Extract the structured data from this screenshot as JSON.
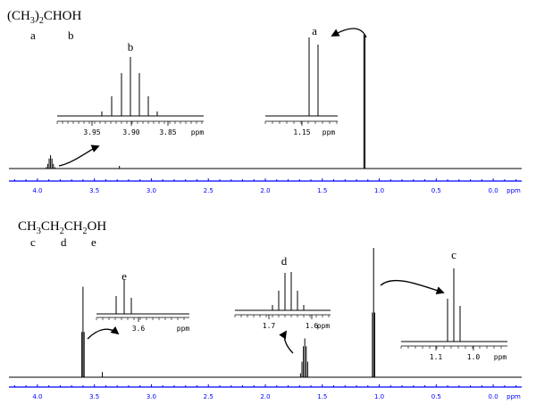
{
  "colors": {
    "spectrum": "#000000",
    "axis": "#0000ff",
    "text": "#000000"
  },
  "spectra": [
    {
      "formula": [
        {
          "t": "(CH",
          "sub": false
        },
        {
          "t": "3",
          "sub": true
        },
        {
          "t": ")",
          "sub": false
        },
        {
          "t": "2",
          "sub": true
        },
        {
          "t": "CHOH",
          "sub": false
        }
      ],
      "atom_labels": [
        "a",
        "b"
      ]
    },
    {
      "formula": [
        {
          "t": "CH",
          "sub": false
        },
        {
          "t": "3",
          "sub": true
        },
        {
          "t": "CH",
          "sub": false
        },
        {
          "t": "2",
          "sub": true
        },
        {
          "t": "CH",
          "sub": false
        },
        {
          "t": "2",
          "sub": true
        },
        {
          "t": "OH",
          "sub": false
        }
      ],
      "atom_labels": [
        "c",
        "d",
        "e"
      ]
    }
  ],
  "chart_data": [
    {
      "type": "line",
      "title": "",
      "xlabel": "ppm",
      "x_ticks": [
        "4.0",
        "3.5",
        "3.0",
        "2.5",
        "2.0",
        "1.5",
        "1.0",
        "0.5",
        "0.0"
      ],
      "xlim": [
        4.25,
        -0.25
      ],
      "reversed_x": true,
      "peaks": [
        {
          "shift": 3.885,
          "height": 0.1,
          "label": "b",
          "multiplicity": "septet"
        },
        {
          "shift": 3.28,
          "height": 0.02,
          "label": "",
          "multiplicity": "singlet"
        },
        {
          "shift": 1.13,
          "height": 1.0,
          "label": "a",
          "multiplicity": "doublet"
        }
      ],
      "insets": [
        {
          "peak_label": "b",
          "ticks": [
            "3.95",
            "3.90",
            "3.85"
          ],
          "unit": "ppm"
        },
        {
          "peak_label": "a",
          "ticks": [
            "1.15"
          ],
          "unit": "ppm"
        }
      ]
    },
    {
      "type": "line",
      "title": "",
      "xlabel": "ppm",
      "x_ticks": [
        "4.0",
        "3.5",
        "3.0",
        "2.5",
        "2.0",
        "1.5",
        "1.0",
        "0.5",
        "0.0"
      ],
      "xlim": [
        4.25,
        -0.25
      ],
      "reversed_x": true,
      "peaks": [
        {
          "shift": 3.6,
          "height": 0.7,
          "label": "e",
          "multiplicity": "triplet"
        },
        {
          "shift": 3.43,
          "height": 0.04,
          "label": "",
          "multiplicity": "singlet"
        },
        {
          "shift": 1.66,
          "height": 0.3,
          "label": "d",
          "multiplicity": "sextet"
        },
        {
          "shift": 1.05,
          "height": 1.0,
          "label": "c",
          "multiplicity": "triplet"
        }
      ],
      "insets": [
        {
          "peak_label": "e",
          "ticks": [
            "3.6"
          ],
          "unit": "ppm"
        },
        {
          "peak_label": "d",
          "ticks": [
            "1.7",
            "1.6"
          ],
          "unit": "ppm"
        },
        {
          "peak_label": "c",
          "ticks": [
            "1.1",
            "1.0"
          ],
          "unit": "ppm"
        }
      ]
    }
  ]
}
